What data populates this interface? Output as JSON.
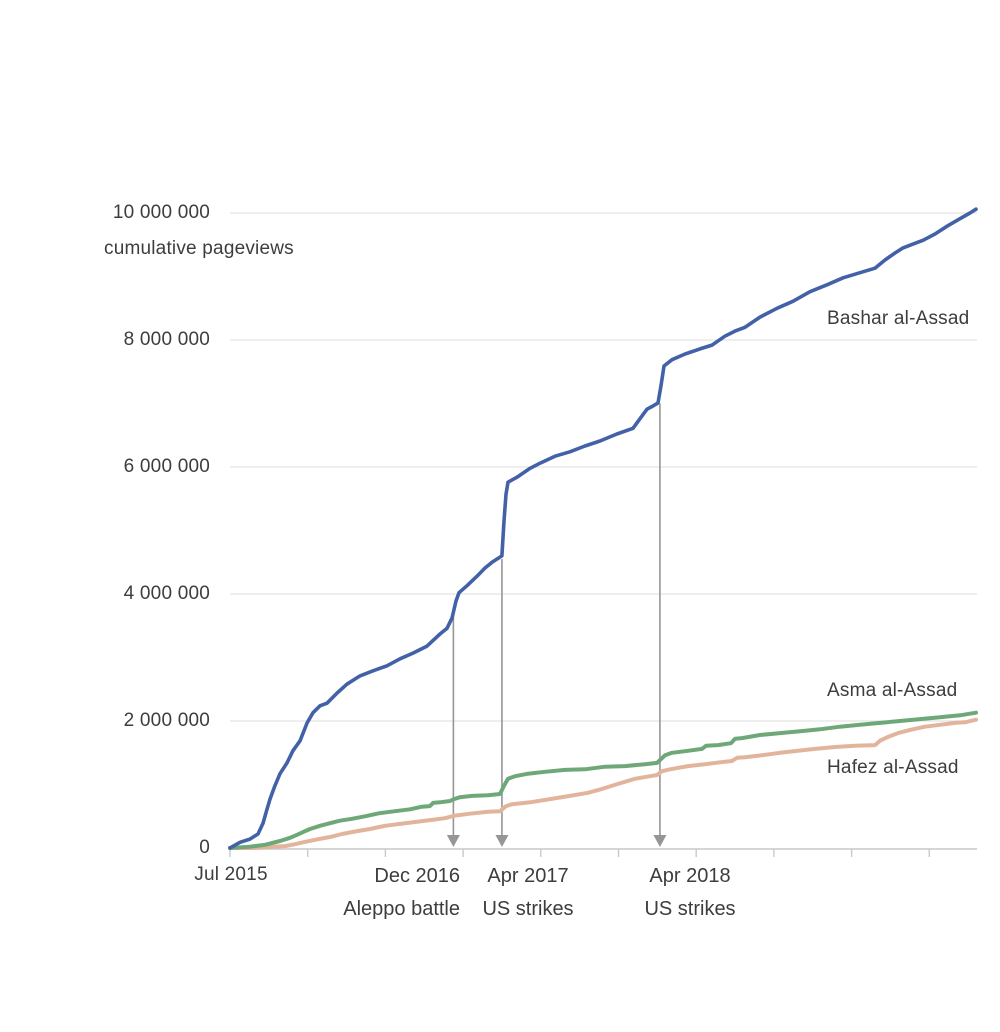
{
  "chart_data": {
    "type": "line",
    "title": "",
    "xlabel": "",
    "ylabel": "cumulative pageviews",
    "x_unit": "months since Jul 2015",
    "x_domain_months": [
      0,
      57.6
    ],
    "y_domain_millions": [
      0,
      10.5
    ],
    "grid": true,
    "x_start_label": "Jul 2015",
    "x_ticks_months": [
      0,
      6,
      12,
      18,
      24,
      30,
      36,
      42,
      48,
      54
    ],
    "y_ticks": [
      {
        "value": 0,
        "label": "0"
      },
      {
        "value": 2,
        "label": "2 000 000"
      },
      {
        "value": 4,
        "label": "4 000 000"
      },
      {
        "value": 6,
        "label": "6 000 000"
      },
      {
        "value": 8,
        "label": "8 000 000"
      },
      {
        "value": 10,
        "label": "10 000 000"
      }
    ],
    "colors": {
      "bashar": "#4261a7",
      "asma": "#6fa878",
      "hafez": "#e3b49c",
      "annotation": "#969696",
      "grid": "#e4e4e4",
      "axis": "#c9c9c9",
      "text": "#3d3d3d",
      "background": "#ffffff"
    },
    "series": [
      {
        "name": "Bashar al-Assad",
        "color": "#4261a7",
        "stroke_width": 3.6,
        "points": [
          [
            0,
            0
          ],
          [
            0.77,
            0.09
          ],
          [
            1.54,
            0.14
          ],
          [
            2.16,
            0.22
          ],
          [
            2.55,
            0.39
          ],
          [
            2.86,
            0.61
          ],
          [
            3.09,
            0.77
          ],
          [
            3.47,
            0.98
          ],
          [
            3.86,
            1.17
          ],
          [
            4.4,
            1.34
          ],
          [
            4.86,
            1.53
          ],
          [
            5.41,
            1.69
          ],
          [
            5.95,
            1.97
          ],
          [
            6.41,
            2.13
          ],
          [
            6.95,
            2.24
          ],
          [
            7.49,
            2.28
          ],
          [
            8.26,
            2.44
          ],
          [
            9.03,
            2.58
          ],
          [
            10.04,
            2.71
          ],
          [
            11.04,
            2.79
          ],
          [
            12.12,
            2.87
          ],
          [
            13.13,
            2.98
          ],
          [
            14.13,
            3.07
          ],
          [
            15.21,
            3.18
          ],
          [
            16.22,
            3.37
          ],
          [
            16.76,
            3.46
          ],
          [
            17.14,
            3.62
          ],
          [
            17.45,
            3.89
          ],
          [
            17.68,
            4.02
          ],
          [
            18.3,
            4.13
          ],
          [
            19.07,
            4.28
          ],
          [
            19.69,
            4.41
          ],
          [
            20.23,
            4.5
          ],
          [
            21.0,
            4.6
          ],
          [
            21.16,
            5.15
          ],
          [
            21.31,
            5.57
          ],
          [
            21.47,
            5.76
          ],
          [
            22.16,
            5.84
          ],
          [
            23.17,
            5.98
          ],
          [
            23.94,
            6.06
          ],
          [
            25.1,
            6.17
          ],
          [
            26.25,
            6.24
          ],
          [
            27.41,
            6.33
          ],
          [
            28.57,
            6.41
          ],
          [
            29.88,
            6.52
          ],
          [
            31.12,
            6.61
          ],
          [
            31.66,
            6.76
          ],
          [
            32.2,
            6.91
          ],
          [
            32.66,
            6.96
          ],
          [
            33.05,
            7.01
          ],
          [
            33.28,
            7.28
          ],
          [
            33.51,
            7.59
          ],
          [
            34.13,
            7.69
          ],
          [
            35.14,
            7.78
          ],
          [
            36.29,
            7.86
          ],
          [
            37.22,
            7.92
          ],
          [
            38.22,
            8.06
          ],
          [
            39.0,
            8.14
          ],
          [
            39.77,
            8.2
          ],
          [
            40.93,
            8.36
          ],
          [
            42.24,
            8.5
          ],
          [
            43.47,
            8.61
          ],
          [
            44.79,
            8.76
          ],
          [
            46.1,
            8.87
          ],
          [
            47.34,
            8.98
          ],
          [
            48.65,
            9.06
          ],
          [
            49.81,
            9.13
          ],
          [
            50.58,
            9.26
          ],
          [
            51.35,
            9.37
          ],
          [
            51.97,
            9.45
          ],
          [
            52.74,
            9.51
          ],
          [
            53.51,
            9.57
          ],
          [
            54.44,
            9.67
          ],
          [
            55.44,
            9.8
          ],
          [
            56.37,
            9.91
          ],
          [
            57.14,
            10.0
          ],
          [
            57.61,
            10.06
          ]
        ]
      },
      {
        "name": "Asma al-Assad",
        "color": "#6fa878",
        "stroke_width": 4,
        "points": [
          [
            0,
            0
          ],
          [
            1.54,
            0.02
          ],
          [
            2.7,
            0.05
          ],
          [
            3.86,
            0.11
          ],
          [
            4.63,
            0.16
          ],
          [
            5.1,
            0.2
          ],
          [
            5.64,
            0.25
          ],
          [
            6.18,
            0.3
          ],
          [
            6.95,
            0.35
          ],
          [
            7.72,
            0.39
          ],
          [
            8.49,
            0.43
          ],
          [
            9.42,
            0.46
          ],
          [
            10.42,
            0.5
          ],
          [
            11.58,
            0.55
          ],
          [
            12.74,
            0.58
          ],
          [
            13.9,
            0.61
          ],
          [
            14.83,
            0.65
          ],
          [
            15.44,
            0.66
          ],
          [
            15.68,
            0.71
          ],
          [
            16.22,
            0.72
          ],
          [
            16.99,
            0.74
          ],
          [
            17.3,
            0.77
          ],
          [
            17.76,
            0.8
          ],
          [
            18.69,
            0.82
          ],
          [
            19.92,
            0.83
          ],
          [
            20.85,
            0.85
          ],
          [
            21.16,
            0.98
          ],
          [
            21.47,
            1.09
          ],
          [
            22.01,
            1.13
          ],
          [
            23.01,
            1.17
          ],
          [
            24.32,
            1.2
          ],
          [
            25.87,
            1.23
          ],
          [
            27.41,
            1.24
          ],
          [
            28.96,
            1.28
          ],
          [
            30.5,
            1.29
          ],
          [
            32.05,
            1.32
          ],
          [
            32.97,
            1.34
          ],
          [
            33.28,
            1.4
          ],
          [
            33.59,
            1.46
          ],
          [
            34.13,
            1.5
          ],
          [
            35.37,
            1.53
          ],
          [
            36.45,
            1.56
          ],
          [
            36.76,
            1.61
          ],
          [
            37.68,
            1.62
          ],
          [
            38.69,
            1.65
          ],
          [
            39.0,
            1.72
          ],
          [
            39.54,
            1.73
          ],
          [
            40.93,
            1.78
          ],
          [
            42.47,
            1.81
          ],
          [
            44.02,
            1.84
          ],
          [
            45.56,
            1.87
          ],
          [
            47.1,
            1.91
          ],
          [
            48.65,
            1.94
          ],
          [
            50.19,
            1.97
          ],
          [
            51.74,
            2.0
          ],
          [
            53.28,
            2.03
          ],
          [
            54.83,
            2.06
          ],
          [
            56.37,
            2.09
          ],
          [
            57.61,
            2.13
          ]
        ]
      },
      {
        "name": "Hafez al-Assad",
        "color": "#e3b49c",
        "stroke_width": 4,
        "points": [
          [
            0,
            0
          ],
          [
            1.93,
            0.0
          ],
          [
            3.24,
            0.02
          ],
          [
            4.25,
            0.03
          ],
          [
            5.02,
            0.06
          ],
          [
            5.64,
            0.09
          ],
          [
            6.33,
            0.12
          ],
          [
            7.1,
            0.15
          ],
          [
            7.88,
            0.18
          ],
          [
            8.65,
            0.22
          ],
          [
            9.65,
            0.26
          ],
          [
            10.81,
            0.3
          ],
          [
            11.97,
            0.35
          ],
          [
            13.13,
            0.38
          ],
          [
            14.29,
            0.41
          ],
          [
            15.44,
            0.44
          ],
          [
            16.6,
            0.47
          ],
          [
            17.37,
            0.51
          ],
          [
            18.53,
            0.54
          ],
          [
            19.92,
            0.57
          ],
          [
            20.85,
            0.58
          ],
          [
            21.31,
            0.66
          ],
          [
            21.78,
            0.69
          ],
          [
            23.17,
            0.72
          ],
          [
            24.71,
            0.77
          ],
          [
            26.25,
            0.82
          ],
          [
            27.64,
            0.87
          ],
          [
            28.73,
            0.93
          ],
          [
            29.96,
            1.01
          ],
          [
            31.27,
            1.09
          ],
          [
            32.43,
            1.13
          ],
          [
            32.97,
            1.15
          ],
          [
            33.36,
            1.21
          ],
          [
            33.98,
            1.24
          ],
          [
            35.37,
            1.29
          ],
          [
            36.68,
            1.32
          ],
          [
            37.84,
            1.35
          ],
          [
            38.76,
            1.37
          ],
          [
            39.15,
            1.42
          ],
          [
            39.77,
            1.43
          ],
          [
            41.08,
            1.46
          ],
          [
            42.47,
            1.5
          ],
          [
            43.86,
            1.53
          ],
          [
            45.17,
            1.56
          ],
          [
            46.72,
            1.59
          ],
          [
            48.26,
            1.61
          ],
          [
            49.81,
            1.62
          ],
          [
            50.19,
            1.69
          ],
          [
            50.81,
            1.75
          ],
          [
            51.58,
            1.81
          ],
          [
            52.51,
            1.86
          ],
          [
            53.67,
            1.91
          ],
          [
            54.83,
            1.94
          ],
          [
            55.98,
            1.97
          ],
          [
            56.76,
            1.98
          ],
          [
            57.61,
            2.02
          ]
        ]
      }
    ],
    "annotations": [
      {
        "month": 17.25,
        "top_value_millions": 3.7,
        "line1": "Dec 2016",
        "line2": "Aleppo battle"
      },
      {
        "month": 21.0,
        "top_value_millions": 4.55,
        "line1": "Apr 2017",
        "line2": "US strikes"
      },
      {
        "month": 33.2,
        "top_value_millions": 7.0,
        "line1": "Apr 2018",
        "line2": "US strikes"
      }
    ]
  }
}
